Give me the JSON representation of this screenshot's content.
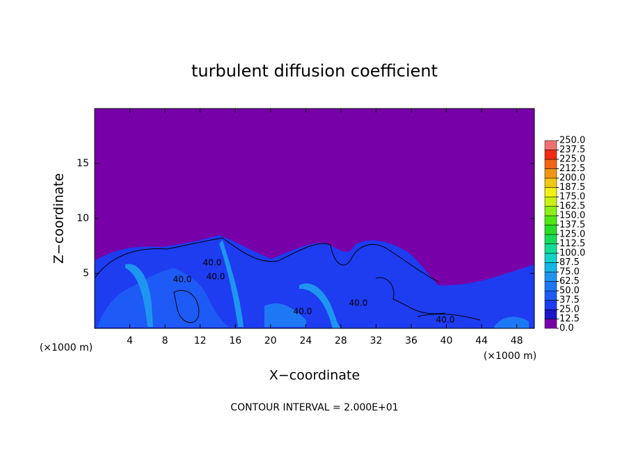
{
  "chart_data": {
    "type": "heatmap",
    "title": "turbulent diffusion coefficient",
    "xlabel": "X−coordinate",
    "ylabel": "Z−coordinate",
    "xunit": "(×1000 m)",
    "yunit": "(×1000 m)",
    "annotation": "CONTOUR INTERVAL = 2.000E+01",
    "contour_labels": [
      {
        "value": 40,
        "label": "40.0"
      },
      {
        "value": 40,
        "label": "40.0"
      },
      {
        "value": 40,
        "label": "40.0"
      },
      {
        "value": 40,
        "label": "40.0"
      },
      {
        "value": 40,
        "label": "40.0"
      },
      {
        "value": 40,
        "label": "40.0"
      }
    ],
    "xlim": [
      0,
      50
    ],
    "xticks": [
      4,
      8,
      12,
      16,
      20,
      24,
      28,
      32,
      36,
      40,
      44,
      48
    ],
    "ylim": [
      0,
      20
    ],
    "yticks": [
      5,
      10,
      15
    ],
    "colorbar": {
      "ticks": [
        {
          "value": 0,
          "label": "0.0"
        },
        {
          "value": 12.5,
          "label": "12.5"
        },
        {
          "value": 25,
          "label": "25.0"
        },
        {
          "value": 37.5,
          "label": "37.5"
        },
        {
          "value": 50,
          "label": "50.0"
        },
        {
          "value": 62.5,
          "label": "62.5"
        },
        {
          "value": 75,
          "label": "75.0"
        },
        {
          "value": 87.5,
          "label": "87.5"
        },
        {
          "value": 100,
          "label": "100.0"
        },
        {
          "value": 112.5,
          "label": "112.5"
        },
        {
          "value": 125,
          "label": "125.0"
        },
        {
          "value": 137.5,
          "label": "137.5"
        },
        {
          "value": 150,
          "label": "150.0"
        },
        {
          "value": 162.5,
          "label": "162.5"
        },
        {
          "value": 175,
          "label": "175.0"
        },
        {
          "value": 187.5,
          "label": "187.5"
        },
        {
          "value": 200,
          "label": "200.0"
        },
        {
          "value": 212.5,
          "label": "212.5"
        },
        {
          "value": 225,
          "label": "225.0"
        },
        {
          "value": 237.5,
          "label": "237.5"
        },
        {
          "value": 250,
          "label": "250.0"
        }
      ],
      "colors": [
        "#7800a8",
        "#1e14c8",
        "#1e3cf0",
        "#1e5af5",
        "#1e78f5",
        "#1e96f0",
        "#14b4e6",
        "#14d2c8",
        "#14dc96",
        "#14dc5a",
        "#28dc28",
        "#50e614",
        "#8cf014",
        "#c8f014",
        "#f0f014",
        "#f0c814",
        "#f09614",
        "#f06414",
        "#f02814",
        "#f07070"
      ]
    }
  }
}
